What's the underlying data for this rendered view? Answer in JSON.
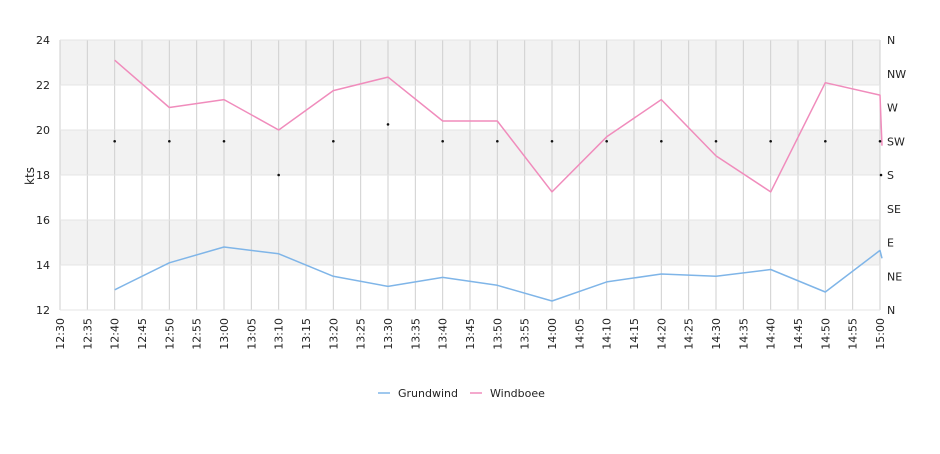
{
  "chart_data": {
    "type": "line",
    "title": "",
    "ylabel": "kts",
    "ylim": [
      12,
      24
    ],
    "yticks": [
      12,
      14,
      16,
      18,
      20,
      22,
      24
    ],
    "xlabel": "",
    "x_ticks": [
      "12:30",
      "12:35",
      "12:40",
      "12:45",
      "12:50",
      "12:55",
      "13:00",
      "13:05",
      "13:10",
      "13:15",
      "13:20",
      "13:25",
      "13:30",
      "13:35",
      "13:40",
      "13:45",
      "13:50",
      "13:55",
      "14:00",
      "14:05",
      "14:10",
      "14:15",
      "14:20",
      "14:25",
      "14:30",
      "14:35",
      "14:40",
      "14:45",
      "14:50",
      "14:55",
      "15:00"
    ],
    "right_axis_labels": [
      "N",
      "NE",
      "E",
      "SE",
      "S",
      "SW",
      "W",
      "NW",
      "N"
    ],
    "band_shading": "alternating",
    "grid": true,
    "legend_position": "bottom-center",
    "series": [
      {
        "name": "Grundwind",
        "color": "#7fb5e8",
        "x": [
          "12:40",
          "12:50",
          "13:00",
          "13:10",
          "13:20",
          "13:30",
          "13:40",
          "13:50",
          "14:00",
          "14:10",
          "14:20",
          "14:30",
          "14:40",
          "14:50",
          "15:00",
          "15:00"
        ],
        "values": [
          12.9,
          14.1,
          14.8,
          14.5,
          13.5,
          13.05,
          13.45,
          13.1,
          12.4,
          13.25,
          13.6,
          13.5,
          13.8,
          12.8,
          14.65,
          14.3
        ]
      },
      {
        "name": "Windboee",
        "color": "#f08cbc",
        "x": [
          "12:40",
          "12:50",
          "13:00",
          "13:10",
          "13:20",
          "13:30",
          "13:40",
          "13:50",
          "14:00",
          "14:10",
          "14:20",
          "14:30",
          "14:40",
          "14:50",
          "15:00",
          "15:00"
        ],
        "values": [
          23.1,
          21.0,
          21.35,
          20.0,
          21.75,
          22.35,
          20.4,
          20.4,
          17.25,
          19.7,
          21.35,
          18.85,
          17.25,
          22.1,
          21.55,
          19.3
        ]
      }
    ],
    "direction_points": [
      {
        "x": "12:40",
        "dir": "SW"
      },
      {
        "x": "12:50",
        "dir": "SW"
      },
      {
        "x": "13:00",
        "dir": "SW"
      },
      {
        "x": "13:10",
        "dir": "S"
      },
      {
        "x": "13:20",
        "dir": "SW"
      },
      {
        "x": "13:30",
        "dir": "WSW"
      },
      {
        "x": "13:40",
        "dir": "SW"
      },
      {
        "x": "13:50",
        "dir": "SW"
      },
      {
        "x": "14:00",
        "dir": "SW"
      },
      {
        "x": "14:10",
        "dir": "SW"
      },
      {
        "x": "14:20",
        "dir": "SW"
      },
      {
        "x": "14:30",
        "dir": "SW"
      },
      {
        "x": "14:40",
        "dir": "SW"
      },
      {
        "x": "14:50",
        "dir": "SW"
      },
      {
        "x": "15:00",
        "dir": "SW"
      },
      {
        "x": "15:00",
        "dir": "S"
      }
    ],
    "direction_axis_values": {
      "N": 0,
      "NE": 45,
      "E": 90,
      "SE": 135,
      "S": 180,
      "SW": 225,
      "W": 270,
      "NW": 315,
      "WSW": 247.5
    }
  }
}
